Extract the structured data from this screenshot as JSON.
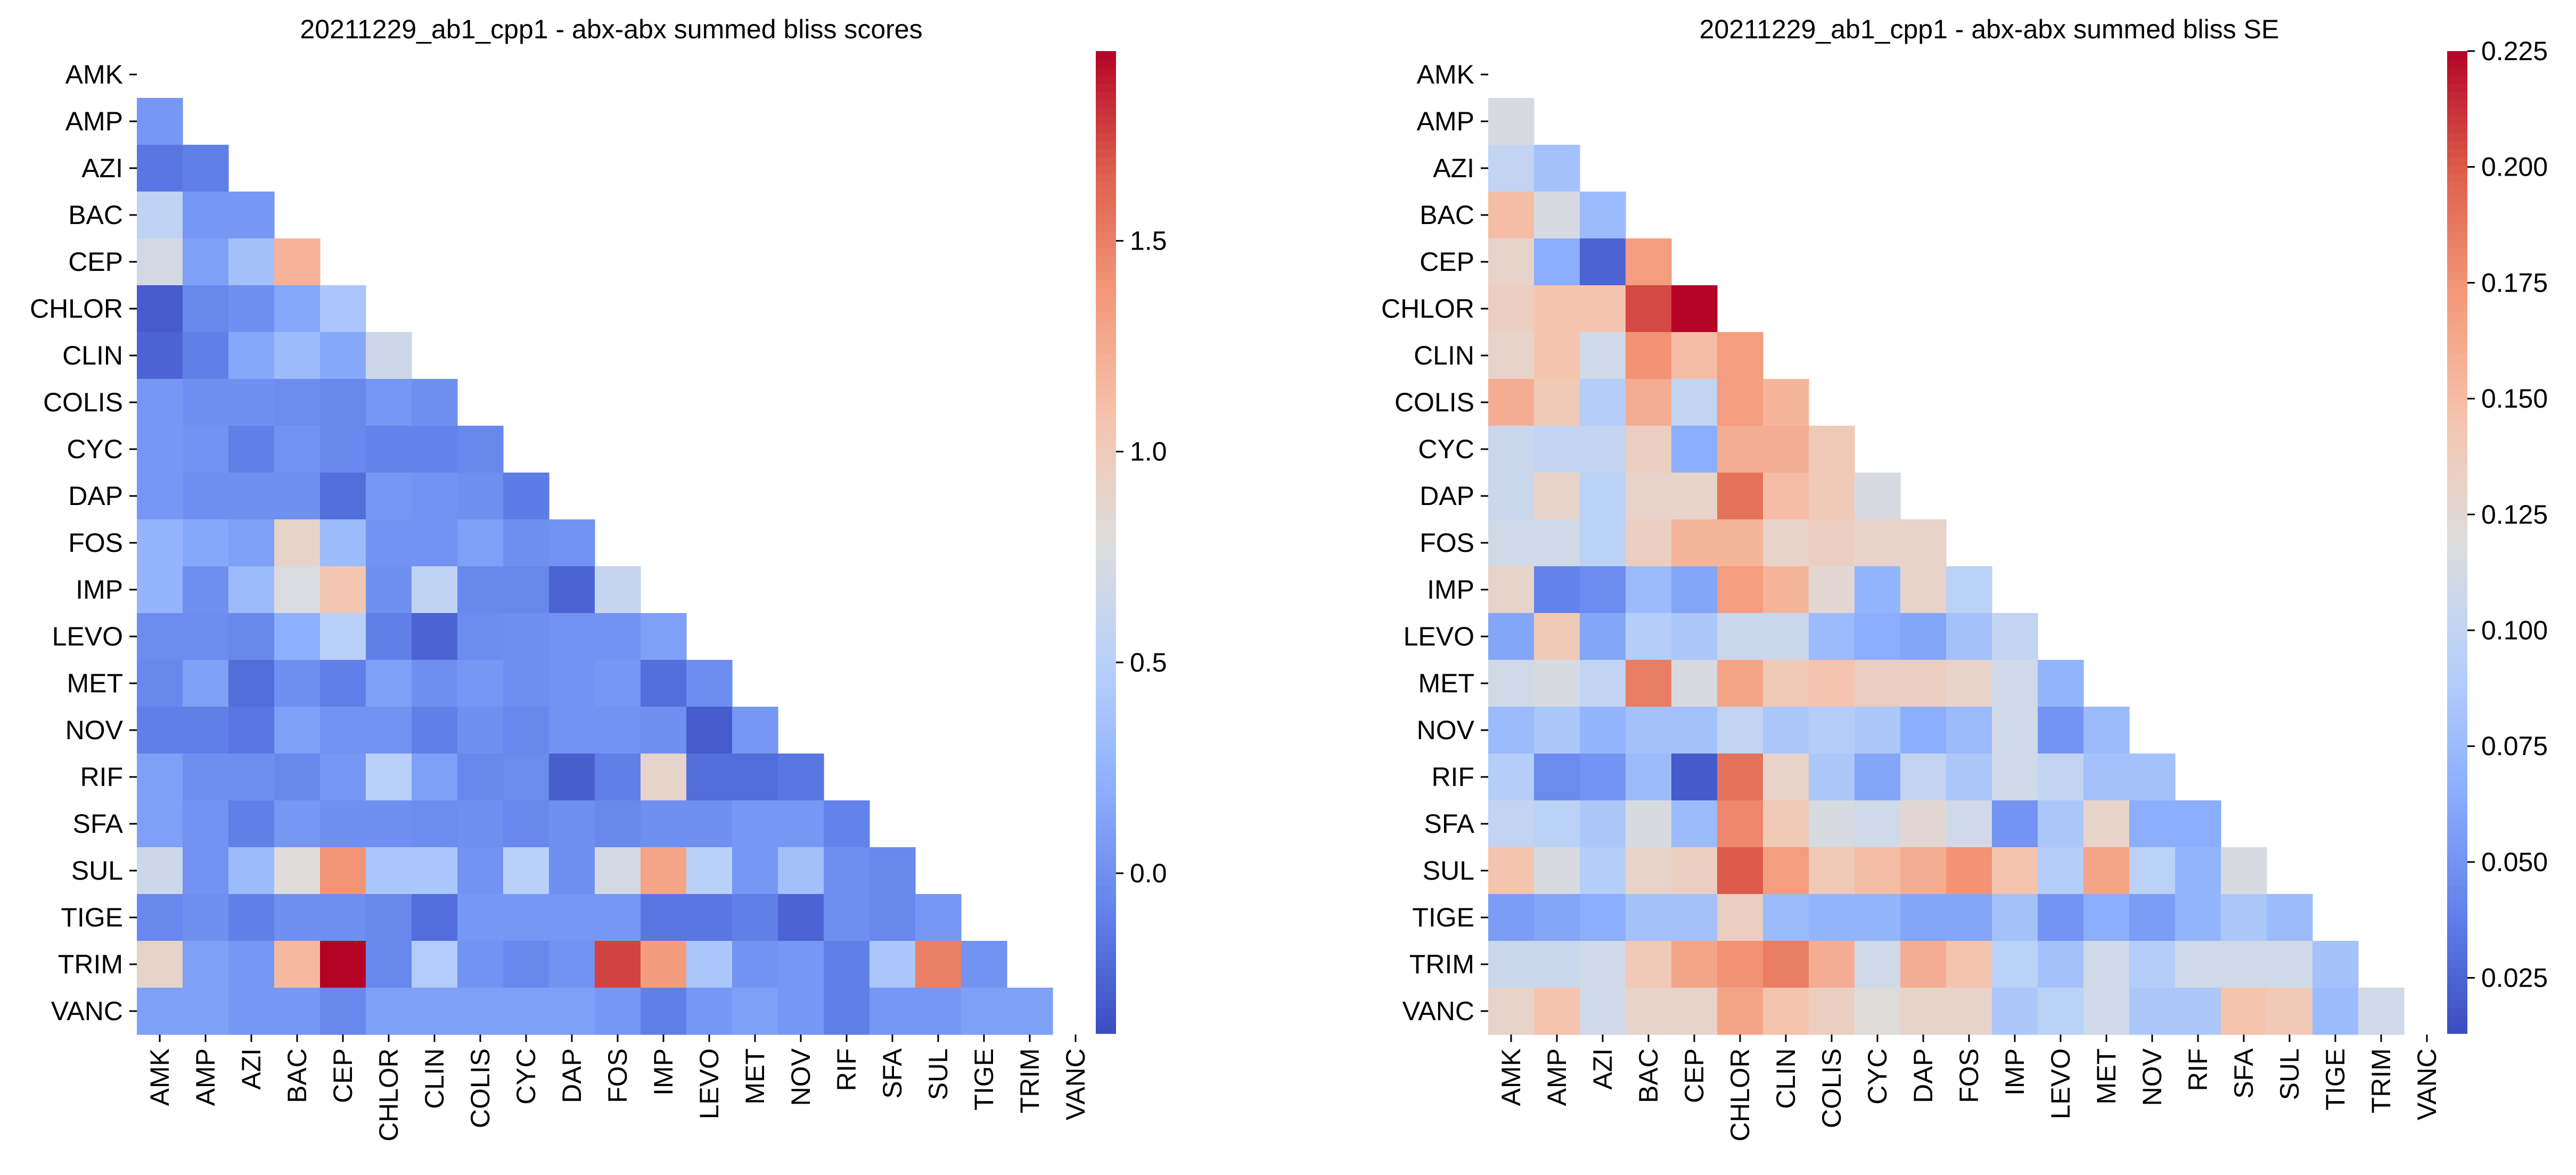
{
  "chart_data": [
    {
      "type": "heatmap",
      "title": "20211229_ab1_cpp1 - abx-abx summed bliss scores",
      "xlabel": "",
      "ylabel": "",
      "labels": [
        "AMK",
        "AMP",
        "AZI",
        "BAC",
        "CEP",
        "CHLOR",
        "CLIN",
        "COLIS",
        "CYC",
        "DAP",
        "FOS",
        "IMP",
        "LEVO",
        "MET",
        "NOV",
        "RIF",
        "SFA",
        "SUL",
        "TIGE",
        "TRIM",
        "VANC"
      ],
      "mask": "upper triangle including diagonal",
      "colormap": "coolwarm",
      "vmin": -0.38,
      "vmax": 1.95,
      "colorbar_ticks": [
        0.0,
        0.5,
        1.0,
        1.5
      ],
      "colorbar_tick_labels": [
        "0.0",
        "0.5",
        "1.0",
        "1.5"
      ],
      "values": [
        [],
        [
          0.05
        ],
        [
          -0.15,
          -0.1
        ],
        [
          0.55,
          0.05,
          0.05
        ],
        [
          0.7,
          0.1,
          0.35,
          1.2
        ],
        [
          -0.3,
          -0.05,
          0.0,
          0.15,
          0.4
        ],
        [
          -0.25,
          -0.1,
          0.15,
          0.3,
          0.15,
          0.65
        ],
        [
          0.05,
          0.0,
          0.0,
          -0.02,
          -0.05,
          0.05,
          0.0
        ],
        [
          0.05,
          0.02,
          -0.1,
          0.02,
          -0.05,
          -0.08,
          -0.08,
          -0.05
        ],
        [
          0.05,
          0.0,
          0.0,
          0.0,
          -0.2,
          0.05,
          0.02,
          0.0,
          -0.12
        ],
        [
          0.25,
          0.15,
          0.1,
          0.9,
          0.3,
          0.02,
          0.02,
          0.1,
          0.0,
          0.02
        ],
        [
          0.25,
          0.0,
          0.3,
          0.75,
          1.05,
          0.0,
          0.55,
          -0.05,
          -0.05,
          -0.25,
          0.6
        ],
        [
          -0.02,
          -0.02,
          -0.05,
          0.2,
          0.5,
          -0.1,
          -0.25,
          -0.02,
          0.0,
          0.02,
          0.02,
          0.1
        ],
        [
          -0.05,
          0.1,
          -0.2,
          0.0,
          -0.1,
          0.1,
          0.0,
          0.05,
          0.0,
          0.02,
          0.05,
          -0.2,
          -0.02
        ],
        [
          -0.1,
          -0.1,
          -0.15,
          0.1,
          0.02,
          0.02,
          -0.1,
          0.0,
          -0.05,
          0.02,
          0.02,
          0.0,
          -0.3,
          0.05
        ],
        [
          0.1,
          0.0,
          0.0,
          -0.05,
          0.05,
          0.5,
          0.1,
          -0.05,
          -0.03,
          -0.28,
          -0.1,
          0.9,
          -0.2,
          -0.2,
          -0.15
        ],
        [
          0.1,
          0.02,
          -0.1,
          0.05,
          0.0,
          0.0,
          -0.02,
          0.0,
          -0.05,
          0.0,
          -0.05,
          0.0,
          0.0,
          0.05,
          0.05,
          -0.08
        ],
        [
          0.65,
          0.02,
          0.3,
          0.8,
          1.4,
          0.4,
          0.4,
          0.02,
          0.5,
          0.0,
          0.7,
          1.3,
          0.5,
          0.05,
          0.35,
          0.0,
          -0.05
        ],
        [
          -0.05,
          0.0,
          -0.1,
          0.0,
          0.0,
          -0.05,
          -0.2,
          0.05,
          0.05,
          0.05,
          0.05,
          -0.15,
          -0.15,
          -0.1,
          -0.25,
          0.0,
          -0.05,
          0.05
        ],
        [
          0.9,
          0.1,
          0.05,
          1.15,
          1.95,
          -0.05,
          0.45,
          0.02,
          -0.05,
          0.02,
          1.75,
          1.35,
          0.4,
          0.02,
          0.05,
          -0.1,
          0.4,
          1.5,
          0.02
        ],
        [
          0.1,
          0.1,
          0.05,
          0.05,
          -0.05,
          0.1,
          0.1,
          0.1,
          0.1,
          0.1,
          0.05,
          -0.1,
          0.05,
          0.1,
          0.05,
          -0.1,
          0.05,
          0.05,
          0.1,
          0.1
        ]
      ]
    },
    {
      "type": "heatmap",
      "title": "20211229_ab1_cpp1 - abx-abx summed bliss SE",
      "xlabel": "",
      "ylabel": "",
      "labels": [
        "AMK",
        "AMP",
        "AZI",
        "BAC",
        "CEP",
        "CHLOR",
        "CLIN",
        "COLIS",
        "CYC",
        "DAP",
        "FOS",
        "IMP",
        "LEVO",
        "MET",
        "NOV",
        "RIF",
        "SFA",
        "SUL",
        "TIGE",
        "TRIM",
        "VANC"
      ],
      "mask": "upper triangle including diagonal",
      "colormap": "coolwarm",
      "vmin": 0.013,
      "vmax": 0.225,
      "colorbar_ticks": [
        0.025,
        0.05,
        0.075,
        0.1,
        0.125,
        0.15,
        0.175,
        0.2,
        0.225
      ],
      "colorbar_tick_labels": [
        "0.025",
        "0.050",
        "0.075",
        "0.100",
        "0.125",
        "0.150",
        "0.175",
        "0.200",
        "0.225"
      ],
      "values": [
        [],
        [
          0.115
        ],
        [
          0.1,
          0.08
        ],
        [
          0.15,
          0.115,
          0.075
        ],
        [
          0.13,
          0.065,
          0.025,
          0.17
        ],
        [
          0.135,
          0.145,
          0.145,
          0.205,
          0.225
        ],
        [
          0.13,
          0.145,
          0.11,
          0.175,
          0.15,
          0.17
        ],
        [
          0.16,
          0.14,
          0.09,
          0.16,
          0.1,
          0.17,
          0.155
        ],
        [
          0.105,
          0.1,
          0.1,
          0.135,
          0.065,
          0.16,
          0.16,
          0.14
        ],
        [
          0.105,
          0.13,
          0.095,
          0.13,
          0.13,
          0.19,
          0.15,
          0.14,
          0.115
        ],
        [
          0.11,
          0.11,
          0.095,
          0.135,
          0.155,
          0.155,
          0.13,
          0.135,
          0.13,
          0.13
        ],
        [
          0.13,
          0.04,
          0.045,
          0.075,
          0.06,
          0.17,
          0.155,
          0.125,
          0.07,
          0.13,
          0.095
        ],
        [
          0.06,
          0.14,
          0.06,
          0.09,
          0.085,
          0.105,
          0.105,
          0.075,
          0.065,
          0.06,
          0.08,
          0.1
        ],
        [
          0.11,
          0.115,
          0.1,
          0.185,
          0.115,
          0.165,
          0.14,
          0.145,
          0.135,
          0.135,
          0.13,
          0.11,
          0.07
        ],
        [
          0.075,
          0.085,
          0.07,
          0.08,
          0.08,
          0.1,
          0.085,
          0.09,
          0.085,
          0.065,
          0.075,
          0.11,
          0.05,
          0.075
        ],
        [
          0.09,
          0.045,
          0.05,
          0.075,
          0.02,
          0.19,
          0.13,
          0.085,
          0.06,
          0.1,
          0.085,
          0.11,
          0.1,
          0.08,
          0.08
        ],
        [
          0.1,
          0.095,
          0.085,
          0.115,
          0.075,
          0.18,
          0.14,
          0.115,
          0.11,
          0.125,
          0.11,
          0.05,
          0.085,
          0.13,
          0.065,
          0.065
        ],
        [
          0.145,
          0.115,
          0.09,
          0.13,
          0.135,
          0.2,
          0.17,
          0.14,
          0.15,
          0.16,
          0.175,
          0.145,
          0.09,
          0.165,
          0.095,
          0.07,
          0.115
        ],
        [
          0.055,
          0.06,
          0.065,
          0.08,
          0.08,
          0.135,
          0.075,
          0.07,
          0.07,
          0.06,
          0.06,
          0.08,
          0.05,
          0.065,
          0.055,
          0.07,
          0.085,
          0.075
        ],
        [
          0.105,
          0.105,
          0.11,
          0.14,
          0.165,
          0.175,
          0.185,
          0.16,
          0.11,
          0.16,
          0.145,
          0.095,
          0.08,
          0.11,
          0.09,
          0.11,
          0.11,
          0.11,
          0.08
        ],
        [
          0.13,
          0.145,
          0.11,
          0.13,
          0.13,
          0.165,
          0.145,
          0.135,
          0.12,
          0.13,
          0.13,
          0.085,
          0.095,
          0.11,
          0.085,
          0.085,
          0.145,
          0.14,
          0.075,
          0.11
        ]
      ]
    }
  ]
}
